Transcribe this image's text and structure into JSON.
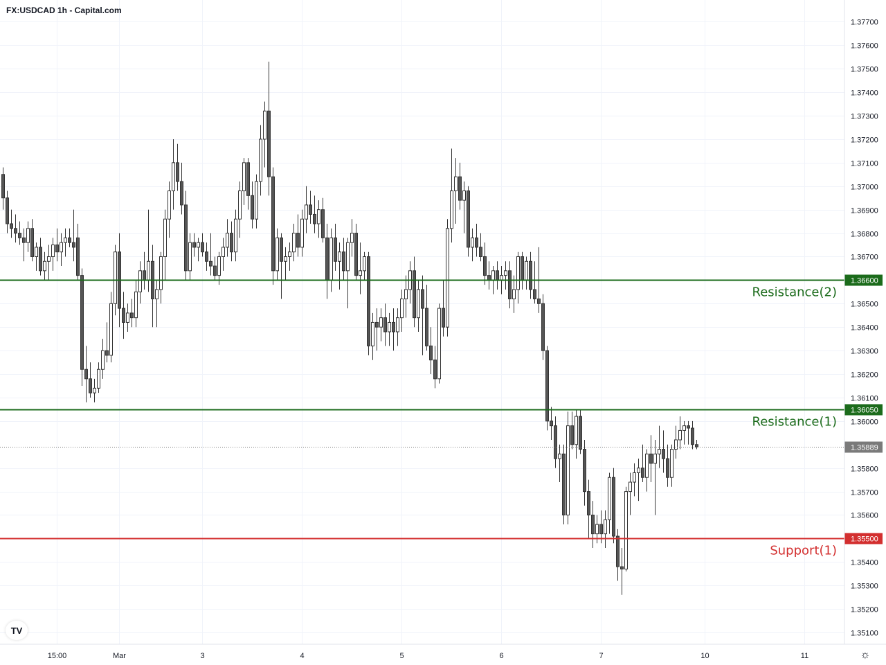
{
  "title": "FX:USDCAD 1h - Capital.com",
  "colors": {
    "resistance": "#1b6b1b",
    "support": "#d32f2f",
    "current": "#7a7a7a",
    "candle_up": "#ffffff",
    "candle_down": "#555555",
    "wick": "#333333"
  },
  "icons": {
    "logo": "tradingview-logo-icon",
    "settings": "gear-icon"
  },
  "logo_text": "TV",
  "settings_glyph": "☼",
  "chart_data": {
    "type": "candlestick",
    "symbol": "FX:USDCAD",
    "interval": "1h",
    "ylim": [
      1.3505,
      1.3771
    ],
    "y_ticks": [
      "1.37700",
      "1.37600",
      "1.37500",
      "1.37400",
      "1.37300",
      "1.37200",
      "1.37100",
      "1.37000",
      "1.36900",
      "1.36800",
      "1.36700",
      "1.36500",
      "1.36400",
      "1.36300",
      "1.36200",
      "1.36100",
      "1.36000",
      "1.35800",
      "1.35700",
      "1.35600",
      "1.35400",
      "1.35300",
      "1.35200",
      "1.35100"
    ],
    "x_ticks": [
      {
        "label": "15:00",
        "index": 13
      },
      {
        "label": "Mar",
        "index": 28
      },
      {
        "label": "3",
        "index": 48
      },
      {
        "label": "4",
        "index": 72
      },
      {
        "label": "5",
        "index": 96
      },
      {
        "label": "6",
        "index": 120
      },
      {
        "label": "7",
        "index": 144
      },
      {
        "label": "10",
        "index": 169
      },
      {
        "label": "11",
        "index": 193
      }
    ],
    "levels": [
      {
        "name": "Resistance(2)",
        "value": 1.366,
        "label": "1.36600",
        "kind": "resistance"
      },
      {
        "name": "Resistance(1)",
        "value": 1.3605,
        "label": "1.36050",
        "kind": "resistance"
      },
      {
        "name": "Support(1)",
        "value": 1.355,
        "label": "1.35500",
        "kind": "support"
      }
    ],
    "current_price": {
      "value": 1.35889,
      "label": "1.35889"
    },
    "candles": [
      [
        1.3705,
        1.3708,
        1.369,
        1.3695
      ],
      [
        1.3695,
        1.3698,
        1.368,
        1.3684
      ],
      [
        1.3684,
        1.369,
        1.3678,
        1.3682
      ],
      [
        1.3682,
        1.3688,
        1.3676,
        1.368
      ],
      [
        1.368,
        1.3685,
        1.3675,
        1.3678
      ],
      [
        1.3678,
        1.3682,
        1.3668,
        1.3676
      ],
      [
        1.3676,
        1.3685,
        1.3672,
        1.3682
      ],
      [
        1.3682,
        1.3686,
        1.3668,
        1.367
      ],
      [
        1.367,
        1.3676,
        1.3664,
        1.3674
      ],
      [
        1.3674,
        1.3678,
        1.3662,
        1.3664
      ],
      [
        1.3664,
        1.3672,
        1.366,
        1.3668
      ],
      [
        1.3668,
        1.3675,
        1.366,
        1.367
      ],
      [
        1.367,
        1.3678,
        1.3664,
        1.3675
      ],
      [
        1.3675,
        1.3682,
        1.3668,
        1.3672
      ],
      [
        1.3672,
        1.368,
        1.3666,
        1.3676
      ],
      [
        1.3676,
        1.3682,
        1.367,
        1.3678
      ],
      [
        1.3678,
        1.3682,
        1.3674,
        1.3676
      ],
      [
        1.3676,
        1.369,
        1.3668,
        1.3674
      ],
      [
        1.3678,
        1.3684,
        1.366,
        1.3662
      ],
      [
        1.3662,
        1.3665,
        1.3615,
        1.3622
      ],
      [
        1.3622,
        1.3632,
        1.3608,
        1.3618
      ],
      [
        1.3618,
        1.3625,
        1.361,
        1.3612
      ],
      [
        1.3612,
        1.3618,
        1.3608,
        1.3614
      ],
      [
        1.3614,
        1.3625,
        1.3612,
        1.3622
      ],
      [
        1.3622,
        1.3635,
        1.3618,
        1.363
      ],
      [
        1.363,
        1.3642,
        1.3625,
        1.3628
      ],
      [
        1.3628,
        1.3655,
        1.3625,
        1.365
      ],
      [
        1.365,
        1.3675,
        1.3645,
        1.3672
      ],
      [
        1.3672,
        1.368,
        1.364,
        1.3648
      ],
      [
        1.3648,
        1.3655,
        1.3635,
        1.3642
      ],
      [
        1.3642,
        1.365,
        1.3638,
        1.3646
      ],
      [
        1.3646,
        1.3652,
        1.364,
        1.3644
      ],
      [
        1.3644,
        1.366,
        1.364,
        1.3655
      ],
      [
        1.3655,
        1.3668,
        1.365,
        1.3664
      ],
      [
        1.3664,
        1.3672,
        1.3656,
        1.366
      ],
      [
        1.366,
        1.369,
        1.3655,
        1.3668
      ],
      [
        1.3668,
        1.3675,
        1.364,
        1.3652
      ],
      [
        1.3652,
        1.366,
        1.364,
        1.3656
      ],
      [
        1.3656,
        1.3672,
        1.365,
        1.367
      ],
      [
        1.367,
        1.369,
        1.366,
        1.3686
      ],
      [
        1.3686,
        1.3702,
        1.3678,
        1.3698
      ],
      [
        1.3698,
        1.372,
        1.369,
        1.371
      ],
      [
        1.371,
        1.3718,
        1.3698,
        1.3702
      ],
      [
        1.3702,
        1.371,
        1.3688,
        1.3692
      ],
      [
        1.3692,
        1.3698,
        1.366,
        1.3664
      ],
      [
        1.3664,
        1.368,
        1.366,
        1.3676
      ],
      [
        1.3676,
        1.368,
        1.367,
        1.3674
      ],
      [
        1.3674,
        1.3678,
        1.3668,
        1.3676
      ],
      [
        1.3676,
        1.368,
        1.367,
        1.3672
      ],
      [
        1.3672,
        1.3676,
        1.3664,
        1.3668
      ],
      [
        1.3668,
        1.368,
        1.3662,
        1.3666
      ],
      [
        1.3666,
        1.367,
        1.366,
        1.3662
      ],
      [
        1.3662,
        1.3672,
        1.3658,
        1.367
      ],
      [
        1.367,
        1.3678,
        1.3664,
        1.3674
      ],
      [
        1.3674,
        1.3686,
        1.367,
        1.368
      ],
      [
        1.368,
        1.3685,
        1.3668,
        1.3672
      ],
      [
        1.3672,
        1.369,
        1.3668,
        1.3686
      ],
      [
        1.3686,
        1.3702,
        1.3678,
        1.3698
      ],
      [
        1.3698,
        1.3712,
        1.3692,
        1.371
      ],
      [
        1.371,
        1.3712,
        1.369,
        1.3696
      ],
      [
        1.3696,
        1.3702,
        1.3682,
        1.3686
      ],
      [
        1.3686,
        1.3705,
        1.3682,
        1.3702
      ],
      [
        1.3702,
        1.3726,
        1.3696,
        1.372
      ],
      [
        1.372,
        1.3736,
        1.3708,
        1.3732
      ],
      [
        1.3732,
        1.3753,
        1.3696,
        1.3704
      ],
      [
        1.3704,
        1.3708,
        1.3658,
        1.3664
      ],
      [
        1.3664,
        1.3682,
        1.366,
        1.3678
      ],
      [
        1.3678,
        1.368,
        1.3652,
        1.3668
      ],
      [
        1.3668,
        1.3674,
        1.366,
        1.367
      ],
      [
        1.367,
        1.3676,
        1.3664,
        1.3672
      ],
      [
        1.3672,
        1.3684,
        1.3668,
        1.368
      ],
      [
        1.368,
        1.3688,
        1.367,
        1.3674
      ],
      [
        1.3674,
        1.369,
        1.367,
        1.3686
      ],
      [
        1.3686,
        1.37,
        1.368,
        1.3692
      ],
      [
        1.3692,
        1.3698,
        1.3684,
        1.3688
      ],
      [
        1.3688,
        1.3696,
        1.368,
        1.3684
      ],
      [
        1.3684,
        1.3694,
        1.3678,
        1.369
      ],
      [
        1.369,
        1.3695,
        1.3676,
        1.3678
      ],
      [
        1.3678,
        1.3684,
        1.3652,
        1.366
      ],
      [
        1.366,
        1.3682,
        1.3655,
        1.3678
      ],
      [
        1.3678,
        1.3684,
        1.3664,
        1.3668
      ],
      [
        1.3668,
        1.3676,
        1.3656,
        1.3672
      ],
      [
        1.3672,
        1.3678,
        1.366,
        1.3664
      ],
      [
        1.3664,
        1.3678,
        1.3648,
        1.3676
      ],
      [
        1.3676,
        1.3686,
        1.367,
        1.368
      ],
      [
        1.368,
        1.3684,
        1.366,
        1.3662
      ],
      [
        1.3662,
        1.3676,
        1.3654,
        1.3664
      ],
      [
        1.3664,
        1.3672,
        1.366,
        1.367
      ],
      [
        1.367,
        1.3672,
        1.3628,
        1.3632
      ],
      [
        1.3632,
        1.3646,
        1.3626,
        1.3642
      ],
      [
        1.3642,
        1.3648,
        1.363,
        1.364
      ],
      [
        1.364,
        1.3648,
        1.3634,
        1.3644
      ],
      [
        1.3644,
        1.365,
        1.3632,
        1.3638
      ],
      [
        1.3638,
        1.3646,
        1.3632,
        1.3642
      ],
      [
        1.3642,
        1.3648,
        1.363,
        1.3638
      ],
      [
        1.3638,
        1.3648,
        1.3632,
        1.3644
      ],
      [
        1.3644,
        1.3656,
        1.3638,
        1.3652
      ],
      [
        1.3652,
        1.3662,
        1.3644,
        1.3656
      ],
      [
        1.3656,
        1.3668,
        1.365,
        1.3664
      ],
      [
        1.3664,
        1.367,
        1.364,
        1.3644
      ],
      [
        1.3644,
        1.366,
        1.3638,
        1.3656
      ],
      [
        1.3656,
        1.3662,
        1.3628,
        1.3648
      ],
      [
        1.3648,
        1.3658,
        1.363,
        1.3632
      ],
      [
        1.3632,
        1.364,
        1.362,
        1.3626
      ],
      [
        1.3626,
        1.3632,
        1.3614,
        1.3618
      ],
      [
        1.3618,
        1.365,
        1.3616,
        1.3648
      ],
      [
        1.3648,
        1.366,
        1.3636,
        1.364
      ],
      [
        1.364,
        1.3686,
        1.3636,
        1.3682
      ],
      [
        1.3682,
        1.3716,
        1.3676,
        1.3698
      ],
      [
        1.3698,
        1.3712,
        1.3684,
        1.3704
      ],
      [
        1.3704,
        1.371,
        1.369,
        1.3694
      ],
      [
        1.3694,
        1.3702,
        1.368,
        1.3698
      ],
      [
        1.3698,
        1.37,
        1.367,
        1.3674
      ],
      [
        1.3674,
        1.3682,
        1.3668,
        1.3678
      ],
      [
        1.3678,
        1.3684,
        1.367,
        1.3674
      ],
      [
        1.3674,
        1.368,
        1.3668,
        1.367
      ],
      [
        1.367,
        1.3676,
        1.3658,
        1.3662
      ],
      [
        1.3662,
        1.3668,
        1.3656,
        1.366
      ],
      [
        1.366,
        1.3666,
        1.3654,
        1.3664
      ],
      [
        1.3664,
        1.3668,
        1.3656,
        1.366
      ],
      [
        1.366,
        1.3666,
        1.3654,
        1.3662
      ],
      [
        1.3662,
        1.3668,
        1.3656,
        1.3664
      ],
      [
        1.3664,
        1.3668,
        1.3648,
        1.3652
      ],
      [
        1.3652,
        1.3662,
        1.3646,
        1.3656
      ],
      [
        1.3656,
        1.3672,
        1.365,
        1.367
      ],
      [
        1.367,
        1.3672,
        1.3656,
        1.366
      ],
      [
        1.366,
        1.367,
        1.3656,
        1.3668
      ],
      [
        1.3668,
        1.3672,
        1.3652,
        1.3656
      ],
      [
        1.3656,
        1.3668,
        1.365,
        1.3652
      ],
      [
        1.3652,
        1.3674,
        1.3646,
        1.365
      ],
      [
        1.365,
        1.3654,
        1.3626,
        1.363
      ],
      [
        1.363,
        1.3632,
        1.3596,
        1.36
      ],
      [
        1.36,
        1.3606,
        1.3592,
        1.3598
      ],
      [
        1.3598,
        1.3602,
        1.358,
        1.3584
      ],
      [
        1.3584,
        1.359,
        1.3574,
        1.3586
      ],
      [
        1.3586,
        1.359,
        1.3556,
        1.356
      ],
      [
        1.356,
        1.3604,
        1.3556,
        1.3598
      ],
      [
        1.3598,
        1.3604,
        1.3588,
        1.359
      ],
      [
        1.359,
        1.3605,
        1.3584,
        1.3602
      ],
      [
        1.3602,
        1.3605,
        1.3586,
        1.3588
      ],
      [
        1.3588,
        1.3592,
        1.3564,
        1.357
      ],
      [
        1.357,
        1.3575,
        1.355,
        1.356
      ],
      [
        1.356,
        1.3566,
        1.3546,
        1.3552
      ],
      [
        1.3552,
        1.356,
        1.3548,
        1.3556
      ],
      [
        1.3556,
        1.3562,
        1.3548,
        1.3552
      ],
      [
        1.3552,
        1.3562,
        1.3546,
        1.3558
      ],
      [
        1.3558,
        1.3578,
        1.3552,
        1.3576
      ],
      [
        1.3576,
        1.358,
        1.3548,
        1.3551
      ],
      [
        1.3551,
        1.3554,
        1.3532,
        1.3538
      ],
      [
        1.3538,
        1.3546,
        1.3526,
        1.3537
      ],
      [
        1.3537,
        1.3572,
        1.3536,
        1.357
      ],
      [
        1.357,
        1.3578,
        1.356,
        1.3574
      ],
      [
        1.3574,
        1.3582,
        1.3568,
        1.3578
      ],
      [
        1.3578,
        1.3584,
        1.3566,
        1.358
      ],
      [
        1.358,
        1.359,
        1.3574,
        1.3576
      ],
      [
        1.3576,
        1.3588,
        1.357,
        1.3586
      ],
      [
        1.3586,
        1.3594,
        1.3574,
        1.3582
      ],
      [
        1.3582,
        1.3592,
        1.356,
        1.3586
      ],
      [
        1.3586,
        1.3598,
        1.358,
        1.3588
      ],
      [
        1.3588,
        1.3596,
        1.3578,
        1.3584
      ],
      [
        1.3584,
        1.359,
        1.3572,
        1.3576
      ],
      [
        1.3576,
        1.359,
        1.3572,
        1.3588
      ],
      [
        1.3588,
        1.3598,
        1.3584,
        1.3592
      ],
      [
        1.3592,
        1.3602,
        1.3588,
        1.3596
      ],
      [
        1.3596,
        1.36,
        1.359,
        1.3598
      ],
      [
        1.3598,
        1.36,
        1.359,
        1.3597
      ],
      [
        1.3597,
        1.36,
        1.3588,
        1.359
      ],
      [
        1.359,
        1.3592,
        1.3588,
        1.3589
      ]
    ]
  }
}
